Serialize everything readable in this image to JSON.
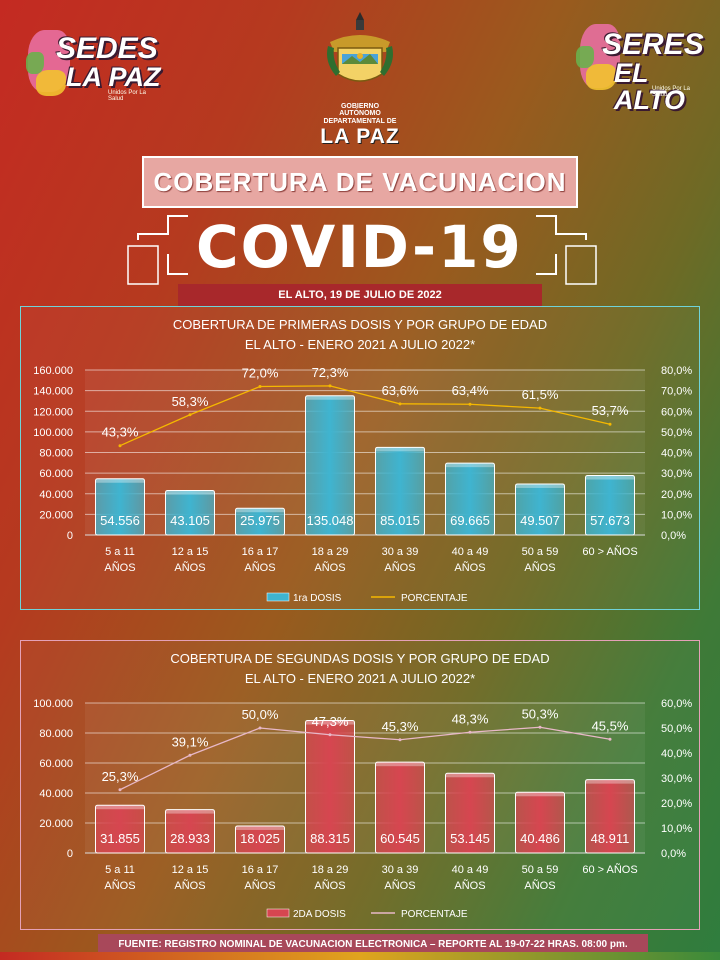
{
  "logos": {
    "left": {
      "line1": "SEDES",
      "line2": "LA PAZ",
      "sub": "Unidos Por La Salud"
    },
    "right": {
      "line1": "SERES",
      "line2": "EL ALTO",
      "sub": "Unidos Por La Salud"
    },
    "center": {
      "gov": "GOBIERNO AUTÓNOMO DEPARTAMENTAL DE",
      "name": "LA PAZ"
    }
  },
  "title": "COBERTURA DE VACUNACION",
  "covid": "COVID-19",
  "date": "EL ALTO, 19 DE JULIO DE 2022",
  "footer": "FUENTE: REGISTRO NOMINAL DE VACUNACION ELECTRONICA – REPORTE AL 19-07-22 HRAS. 08:00 pm.",
  "colors": {
    "bar1": "#3fb4d0",
    "bar2": "#d64650",
    "line1": "#f5b800",
    "line2": "#e8b8c8",
    "panel1_border": "#6fd3d8",
    "panel2_border": "#e5a1b7"
  },
  "chart_data": [
    {
      "type": "bar",
      "title_line1": "COBERTURA DE PRIMERAS DOSIS Y POR GRUPO DE EDAD",
      "title_line2": "EL ALTO - ENERO 2021 A JULIO 2022*",
      "categories": [
        [
          "5 a 11",
          "AÑOS"
        ],
        [
          "12 a 15",
          "AÑOS"
        ],
        [
          "16 a 17",
          "AÑOS"
        ],
        [
          "18 a 29",
          "AÑOS"
        ],
        [
          "30 a 39",
          "AÑOS"
        ],
        [
          "40 a 49",
          "AÑOS"
        ],
        [
          "50 a 59",
          "AÑOS"
        ],
        [
          "60 > AÑOS",
          ""
        ]
      ],
      "series": [
        {
          "name": "1ra DOSIS",
          "kind": "bar",
          "axis": "left",
          "values": [
            54556,
            43105,
            25975,
            135048,
            85015,
            69665,
            49507,
            57673
          ],
          "labels": [
            "54.556",
            "43.105",
            "25.975",
            "135.048",
            "85.015",
            "69.665",
            "49.507",
            "57.673"
          ]
        },
        {
          "name": "PORCENTAJE",
          "kind": "line",
          "axis": "right",
          "values": [
            43.3,
            58.3,
            72.0,
            72.3,
            63.6,
            63.4,
            61.5,
            53.7
          ],
          "labels": [
            "43,3%",
            "58,3%",
            "72,0%",
            "72,3%",
            "63,6%",
            "63,4%",
            "61,5%",
            "53,7%"
          ]
        }
      ],
      "ylim": [
        0,
        160000
      ],
      "yticks": [
        "0",
        "20.000",
        "40.000",
        "60.000",
        "80.000",
        "100.000",
        "120.000",
        "140.000",
        "160.000"
      ],
      "y2lim": [
        0,
        80
      ],
      "y2ticks": [
        "0,0%",
        "10,0%",
        "20,0%",
        "30,0%",
        "40,0%",
        "50,0%",
        "60,0%",
        "70,0%",
        "80,0%"
      ],
      "grid": true,
      "legend": "bottom"
    },
    {
      "type": "bar",
      "title_line1": "COBERTURA DE SEGUNDAS DOSIS Y POR GRUPO DE EDAD",
      "title_line2": "EL ALTO - ENERO 2021 A JULIO 2022*",
      "categories": [
        [
          "5 a 11",
          "AÑOS"
        ],
        [
          "12 a 15",
          "AÑOS"
        ],
        [
          "16 a 17",
          "AÑOS"
        ],
        [
          "18 a 29",
          "AÑOS"
        ],
        [
          "30 a 39",
          "AÑOS"
        ],
        [
          "40 a 49",
          "AÑOS"
        ],
        [
          "50 a 59",
          "AÑOS"
        ],
        [
          "60 > AÑOS",
          ""
        ]
      ],
      "series": [
        {
          "name": "2DA DOSIS",
          "kind": "bar",
          "axis": "left",
          "values": [
            31855,
            28933,
            18025,
            88315,
            60545,
            53145,
            40486,
            48911
          ],
          "labels": [
            "31.855",
            "28.933",
            "18.025",
            "88.315",
            "60.545",
            "53.145",
            "40.486",
            "48.911"
          ]
        },
        {
          "name": "PORCENTAJE",
          "kind": "line",
          "axis": "right",
          "values": [
            25.3,
            39.1,
            50.0,
            47.3,
            45.3,
            48.3,
            50.3,
            45.5
          ],
          "labels": [
            "25,3%",
            "39,1%",
            "50,0%",
            "47,3%",
            "45,3%",
            "48,3%",
            "50,3%",
            "45,5%"
          ]
        }
      ],
      "ylim": [
        0,
        100000
      ],
      "yticks": [
        "0",
        "20.000",
        "40.000",
        "60.000",
        "80.000",
        "100.000"
      ],
      "y2lim": [
        0,
        60
      ],
      "y2ticks": [
        "0,0%",
        "10,0%",
        "20,0%",
        "30,0%",
        "40,0%",
        "50,0%",
        "60,0%"
      ],
      "grid": true,
      "legend": "bottom"
    }
  ]
}
